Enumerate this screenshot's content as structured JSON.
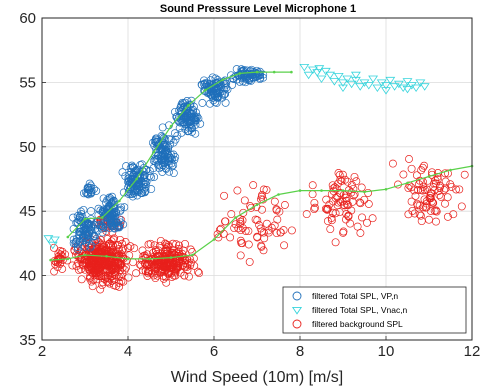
{
  "chart_data": {
    "type": "scatter",
    "title": "Sound Presssure Level Microphone 1",
    "xlabel": "Wind Speed (10m) [m/s]",
    "ylabel": "",
    "xlim": [
      2,
      12
    ],
    "ylim": [
      35,
      60
    ],
    "x_ticks": [
      2,
      4,
      6,
      8,
      10,
      12
    ],
    "y_ticks": [
      35,
      40,
      45,
      50,
      55,
      60
    ],
    "x_tick_labels": [
      "2",
      "4",
      "6",
      "8",
      "10",
      "12"
    ],
    "y_tick_labels": [
      "35",
      "40",
      "45",
      "50",
      "55",
      "60"
    ],
    "grid": true,
    "legend_position": "bottom-right",
    "colors": {
      "vp": "#1f6fba",
      "vnac": "#35d4dc",
      "background": "#e8201c",
      "trend": "#5ad14a"
    },
    "series": [
      {
        "name": "filtered Total SPL, VP,n",
        "marker": "circle",
        "color": "#1f6fba",
        "clusters": [
          {
            "x": [
              2.6,
              3.4
            ],
            "y": [
              41.5,
              45.5
            ],
            "n": 90
          },
          {
            "x": [
              2.9,
              3.3
            ],
            "y": [
              45.5,
              47.5
            ],
            "n": 20
          },
          {
            "x": [
              3.2,
              4.0
            ],
            "y": [
              43.0,
              46.5
            ],
            "n": 110
          },
          {
            "x": [
              3.8,
              4.6
            ],
            "y": [
              45.5,
              49.5
            ],
            "n": 110
          },
          {
            "x": [
              4.4,
              5.2
            ],
            "y": [
              47.0,
              52.0
            ],
            "n": 110
          },
          {
            "x": [
              5.0,
              5.8
            ],
            "y": [
              50.5,
              54.0
            ],
            "n": 100
          },
          {
            "x": [
              5.6,
              6.5
            ],
            "y": [
              53.0,
              55.8
            ],
            "n": 90
          },
          {
            "x": [
              6.3,
              7.3
            ],
            "y": [
              54.8,
              56.3
            ],
            "n": 70
          }
        ]
      },
      {
        "name": "filtered Total SPL, Vnac,n",
        "marker": "triangle-down",
        "color": "#35d4dc",
        "points": [
          [
            2.15,
            42.9
          ],
          [
            2.25,
            42.4
          ],
          [
            2.3,
            42.8
          ],
          [
            8.1,
            56.2
          ],
          [
            8.2,
            55.6
          ],
          [
            8.3,
            56.0
          ],
          [
            8.4,
            55.8
          ],
          [
            8.45,
            56.1
          ],
          [
            8.5,
            55.3
          ],
          [
            8.6,
            55.9
          ],
          [
            8.7,
            55.6
          ],
          [
            8.8,
            55.1
          ],
          [
            8.9,
            55.5
          ],
          [
            9.0,
            55.0
          ],
          [
            9.1,
            55.3
          ],
          [
            9.2,
            54.9
          ],
          [
            9.3,
            55.2
          ],
          [
            9.4,
            54.7
          ],
          [
            9.5,
            55.0
          ],
          [
            9.6,
            54.8
          ],
          [
            9.7,
            55.3
          ],
          [
            9.8,
            54.6
          ],
          [
            9.9,
            55.0
          ],
          [
            10.0,
            54.8
          ],
          [
            10.1,
            55.2
          ],
          [
            10.2,
            54.7
          ],
          [
            10.3,
            54.9
          ],
          [
            10.4,
            54.6
          ],
          [
            10.5,
            55.1
          ],
          [
            10.6,
            54.8
          ],
          [
            10.7,
            54.6
          ],
          [
            10.8,
            55.0
          ],
          [
            10.9,
            54.7
          ],
          [
            9.3,
            55.6
          ],
          [
            9.0,
            54.6
          ],
          [
            10.0,
            54.4
          ],
          [
            10.5,
            54.5
          ]
        ]
      },
      {
        "name": "filtered background SPL",
        "marker": "circle",
        "color": "#e8201c",
        "clusters": [
          {
            "x": [
              2.0,
              2.8
            ],
            "y": [
              39.8,
              42.5
            ],
            "n": 25
          },
          {
            "x": [
              2.6,
              4.2
            ],
            "y": [
              38.8,
              43.5
            ],
            "n": 360
          },
          {
            "x": [
              3.0,
              4.0
            ],
            "y": [
              43.0,
              44.8
            ],
            "n": 25
          },
          {
            "x": [
              4.0,
              5.8
            ],
            "y": [
              39.0,
              43.0
            ],
            "n": 230
          },
          {
            "x": [
              5.8,
              8.0
            ],
            "y": [
              40.5,
              48.0
            ],
            "n": 70
          },
          {
            "x": [
              8.0,
              10.0
            ],
            "y": [
              42.0,
              49.5
            ],
            "n": 80
          },
          {
            "x": [
              10.0,
              12.0
            ],
            "y": [
              43.0,
              50.0
            ],
            "n": 85
          }
        ]
      }
    ],
    "trend_lines": [
      {
        "of": "filtered Total SPL, VP,n",
        "x": [
          2.6,
          3.0,
          3.4,
          3.8,
          4.2,
          4.6,
          5.0,
          5.4,
          5.8,
          6.2,
          6.6,
          7.0,
          7.4,
          7.8
        ],
        "y": [
          43.0,
          44.4,
          44.5,
          45.8,
          47.5,
          49.6,
          51.6,
          53.2,
          54.4,
          55.2,
          55.7,
          55.8,
          55.8,
          55.8
        ]
      },
      {
        "of": "filtered background SPL",
        "x": [
          2.2,
          2.6,
          3.0,
          3.5,
          4.0,
          4.5,
          5.0,
          5.5,
          6.0,
          6.5,
          7.0,
          7.5,
          8.0,
          8.5,
          9.0,
          9.5,
          10.0,
          10.5,
          11.0,
          11.5,
          12.0
        ],
        "y": [
          41.2,
          41.3,
          41.6,
          41.5,
          41.3,
          41.3,
          41.4,
          41.6,
          42.8,
          44.5,
          45.5,
          46.3,
          46.6,
          46.6,
          46.6,
          46.5,
          46.7,
          47.2,
          47.7,
          48.2,
          48.5
        ]
      }
    ]
  }
}
